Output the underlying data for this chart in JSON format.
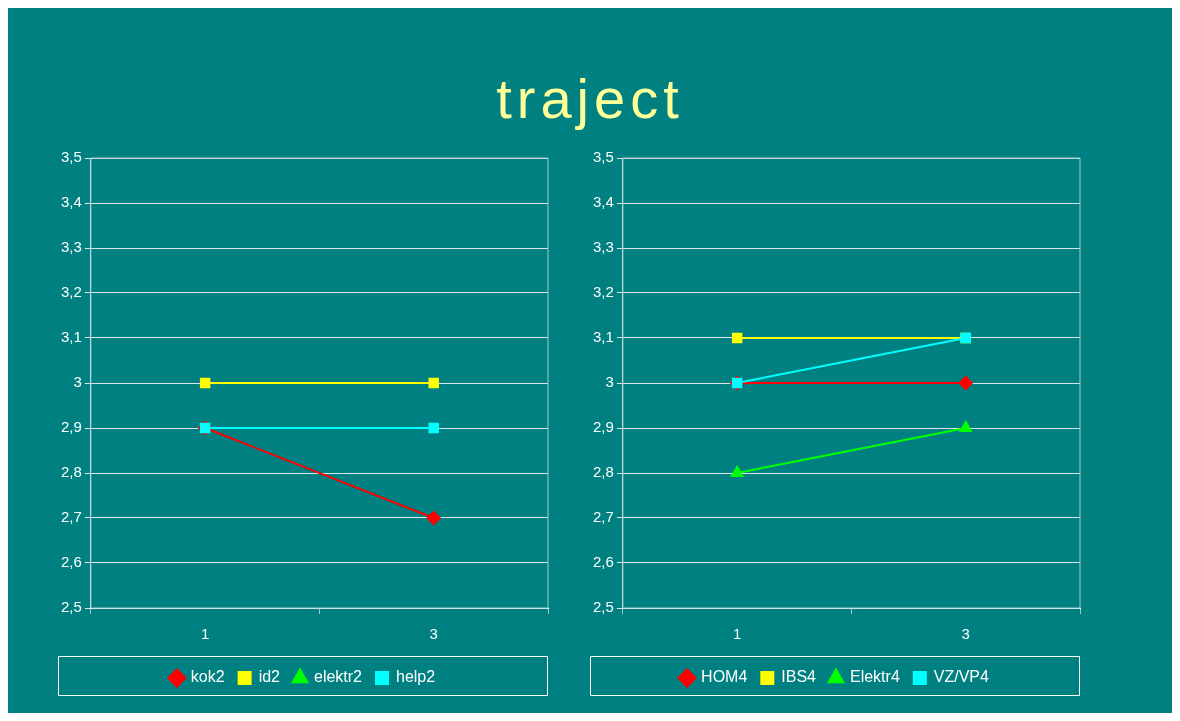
{
  "chart_data": [
    {
      "type": "line",
      "title": "traject",
      "categories": [
        "1",
        "3"
      ],
      "series": [
        {
          "name": "kok2",
          "color": "#ff0000",
          "marker": "diamond",
          "values": [
            2.9,
            2.7
          ]
        },
        {
          "name": "id2",
          "color": "#ffff00",
          "marker": "square",
          "values": [
            3,
            3
          ]
        },
        {
          "name": "elektr2",
          "color": "#00ff00",
          "marker": "triangle",
          "values": [
            null,
            null
          ]
        },
        {
          "name": "help2",
          "color": "#00ffff",
          "marker": "square",
          "values": [
            2.9,
            2.9
          ]
        }
      ],
      "ylim": [
        2.5,
        3.5
      ],
      "yticks": [
        {
          "value": 2.5,
          "label": "2,5"
        },
        {
          "value": 2.6,
          "label": "2,6"
        },
        {
          "value": 2.7,
          "label": "2,7"
        },
        {
          "value": 2.8,
          "label": "2,8"
        },
        {
          "value": 2.9,
          "label": "2,9"
        },
        3,
        {
          "value": 3.1,
          "label": "3,1"
        },
        {
          "value": 3.2,
          "label": "3,2"
        },
        {
          "value": 3.3,
          "label": "3,3"
        },
        {
          "value": 3.4,
          "label": "3,4"
        },
        {
          "value": 3.5,
          "label": "3,5"
        }
      ],
      "grid": "y",
      "legend": "bottom",
      "line_style": "solid"
    },
    {
      "type": "line",
      "categories": [
        "1",
        "3"
      ],
      "series": [
        {
          "name": "HOM4",
          "color": "#ff0000",
          "marker": "diamond",
          "values": [
            3,
            3
          ]
        },
        {
          "name": "IBS4",
          "color": "#ffff00",
          "marker": "square",
          "values": [
            3.1,
            3.1
          ]
        },
        {
          "name": "Elektr4",
          "color": "#00ff00",
          "marker": "triangle",
          "values": [
            2.8,
            2.9
          ]
        },
        {
          "name": "VZ/VP4",
          "color": "#00ffff",
          "marker": "square",
          "values": [
            3,
            3.1
          ]
        }
      ],
      "ylim": [
        2.5,
        3.5
      ],
      "yticks": [
        {
          "value": 2.5,
          "label": "2,5"
        },
        {
          "value": 2.6,
          "label": "2,6"
        },
        {
          "value": 2.7,
          "label": "2,7"
        },
        {
          "value": 2.8,
          "label": "2,8"
        },
        {
          "value": 2.9,
          "label": "2,9"
        },
        3,
        {
          "value": 3.1,
          "label": "3,1"
        },
        {
          "value": 3.2,
          "label": "3,2"
        },
        {
          "value": 3.3,
          "label": "3,3"
        },
        {
          "value": 3.4,
          "label": "3,4"
        },
        {
          "value": 3.5,
          "label": "3,5"
        }
      ],
      "grid": "y",
      "legend": "bottom",
      "line_style": "solid"
    }
  ]
}
